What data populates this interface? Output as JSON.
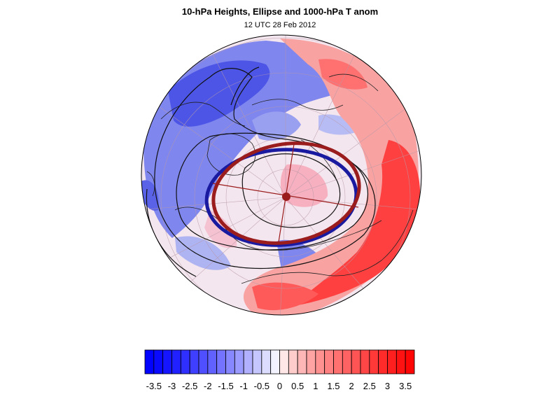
{
  "title": "10-hPa Heights, Ellipse and 1000-hPa T anom",
  "subtitle": "12 UTC 28 Feb 2012",
  "colorbar": {
    "tick_labels": [
      "-3.5",
      "-3",
      "-2.5",
      "-2",
      "-1.5",
      "-1",
      "-0.5",
      "0",
      "0.5",
      "1",
      "1.5",
      "2",
      "2.5",
      "3",
      "3.5"
    ],
    "range": [
      -3.75,
      3.75
    ],
    "bin_width": 0.25,
    "low_color": "#0000ff",
    "mid_color": "#ffffff",
    "high_color": "#ff0000"
  },
  "map": {
    "projection": "polar stereographic (north pole)",
    "ellipse_colors": [
      "#1a1aa0",
      "#9a1c1c"
    ]
  }
}
